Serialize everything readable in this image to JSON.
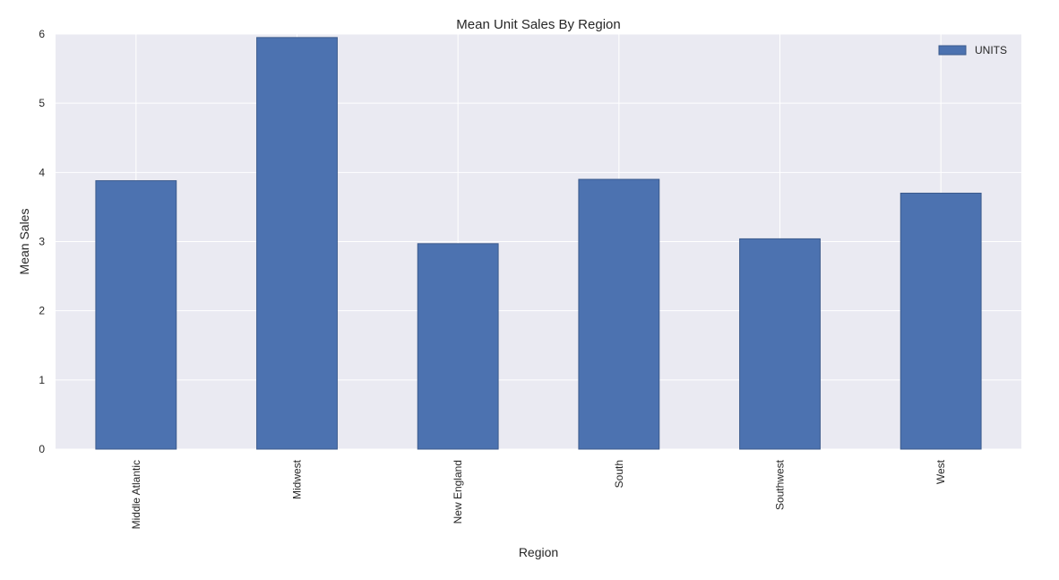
{
  "chart_data": {
    "type": "bar",
    "title": "Mean Unit Sales By Region",
    "xlabel": "Region",
    "ylabel": "Mean Sales",
    "categories": [
      "Middle Atlantic",
      "Midwest",
      "New England",
      "South",
      "Southwest",
      "West"
    ],
    "series": [
      {
        "name": "UNITS",
        "values": [
          3.88,
          5.95,
          2.97,
          3.9,
          3.04,
          3.7
        ],
        "color": "#4c72b0"
      }
    ],
    "ylim": [
      0,
      6
    ],
    "yticks": [
      0,
      1,
      2,
      3,
      4,
      5,
      6
    ],
    "grid": true,
    "legend_position": "top-right",
    "colors": {
      "plot_background": "#eaeaf2",
      "grid": "#ffffff",
      "bar_edge": "#3b5a8c",
      "text": "#262626"
    }
  }
}
